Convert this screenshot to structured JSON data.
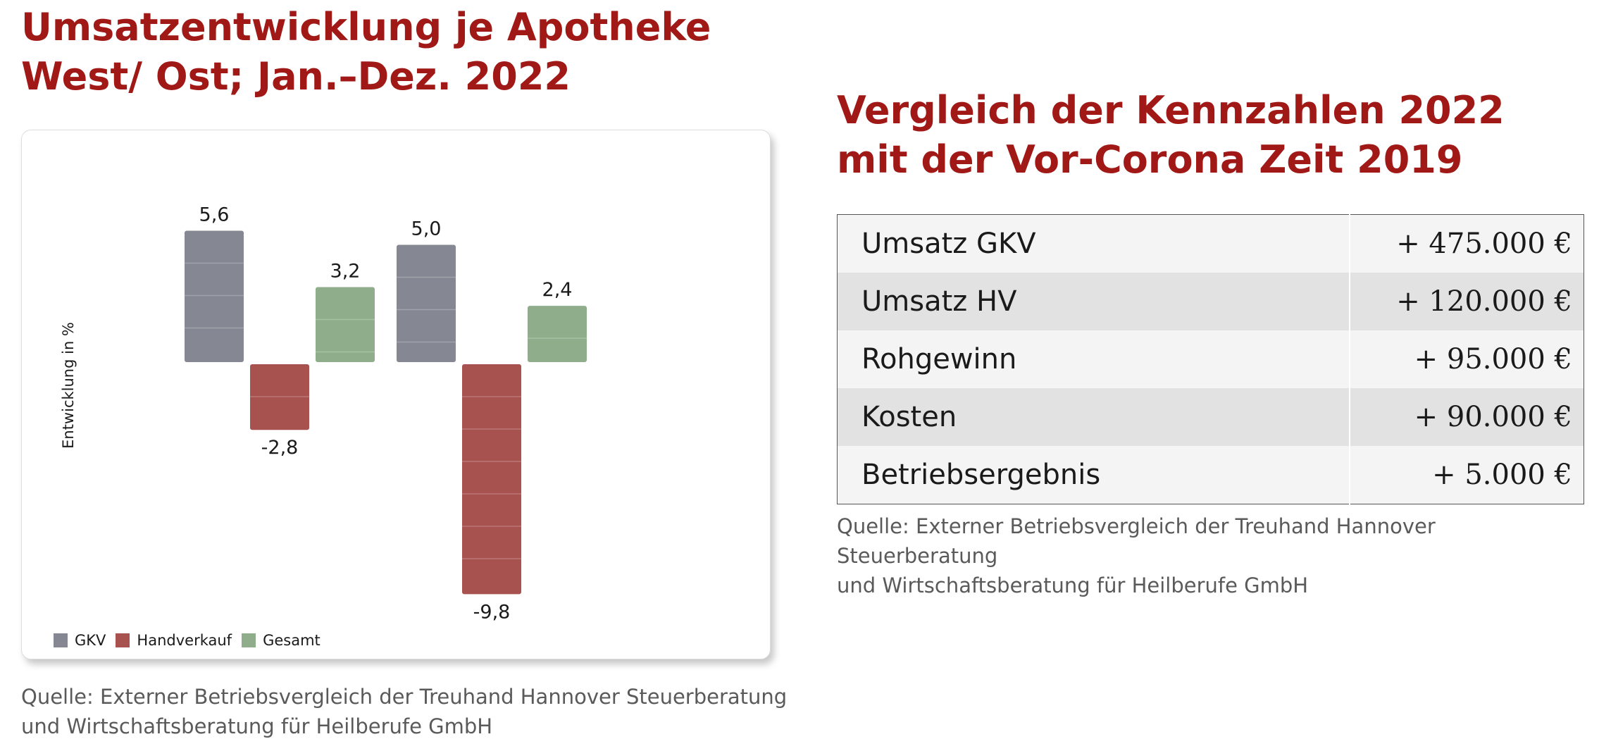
{
  "left": {
    "title_lines": [
      "Umsatzentwicklung je Apotheke",
      "West/ Ost; Jan.–Dez. 2022"
    ],
    "source_lines": [
      "Quelle: Externer Betriebsvergleich der Treuhand Hannover Steuerberatung",
      "und Wirtschaftsberatung für Heilberufe GmbH"
    ]
  },
  "right": {
    "title_lines": [
      "Vergleich der Kennzahlen 2022",
      "mit der Vor-Corona Zeit 2019"
    ],
    "table": [
      {
        "label": "Umsatz GKV",
        "value": "+ 475.000 €"
      },
      {
        "label": "Umsatz HV",
        "value": "+ 120.000 €"
      },
      {
        "label": "Rohgewinn",
        "value": "+ 95.000 €"
      },
      {
        "label": "Kosten",
        "value": "+ 90.000 €"
      },
      {
        "label": "Betriebsergebnis",
        "value": "+ 5.000 €"
      }
    ],
    "source_lines": [
      "Quelle: Externer Betriebsvergleich der Treuhand Hannover Steuerberatung",
      "und Wirtschaftsberatung für Heilberufe GmbH"
    ]
  },
  "chart_data": {
    "type": "bar",
    "ylabel": "Entwicklung in %",
    "groups": 2,
    "series": [
      {
        "name": "GKV",
        "color": "#858892",
        "values": [
          5.6,
          5.0
        ],
        "labels": [
          "5,6",
          "5,0"
        ]
      },
      {
        "name": "Handverkauf",
        "color": "#a85250",
        "values": [
          -2.8,
          -9.8
        ],
        "labels": [
          "-2,8",
          "-9,8"
        ]
      },
      {
        "name": "Gesamt",
        "color": "#8fad8b",
        "values": [
          3.2,
          2.4
        ],
        "labels": [
          "3,2",
          "2,4"
        ]
      }
    ],
    "legend_position": "bottom-left",
    "grid": false
  }
}
